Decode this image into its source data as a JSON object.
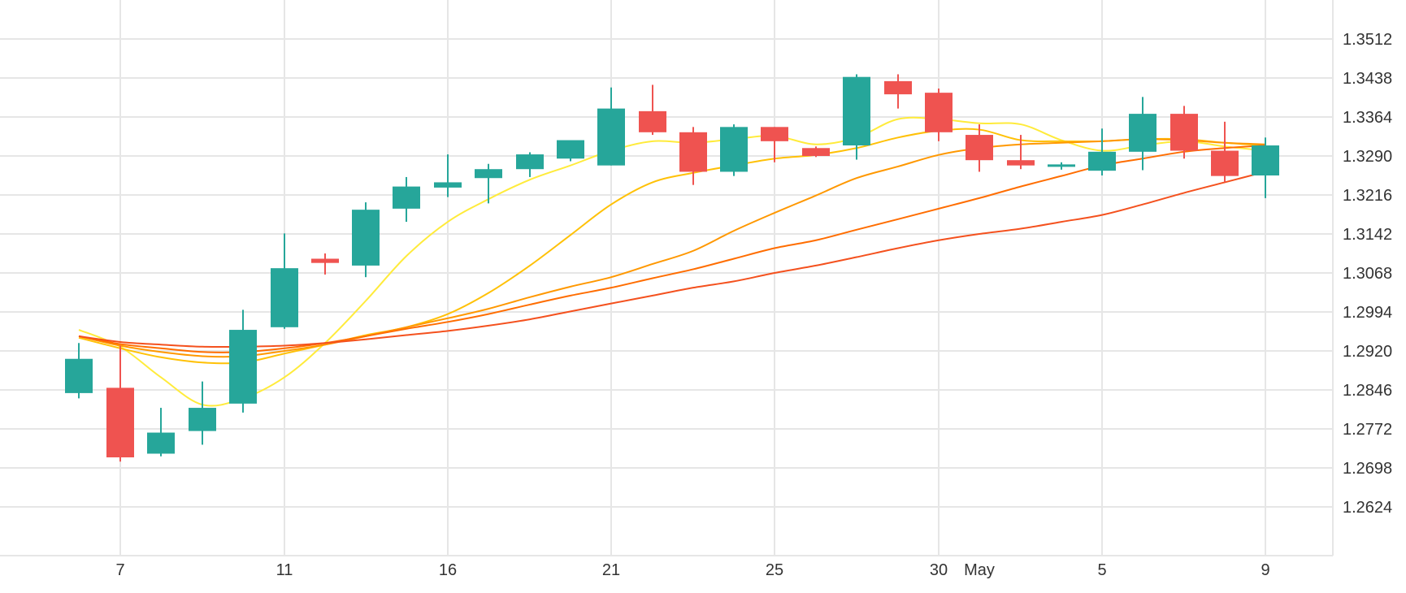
{
  "chart_data": {
    "type": "candlestick",
    "x_ticks": [
      "7",
      "11",
      "16",
      "21",
      "25",
      "30",
      "May",
      "5",
      "9"
    ],
    "y_ticks": [
      "1.3512",
      "1.3438",
      "1.3364",
      "1.3290",
      "1.3216",
      "1.3142",
      "1.3068",
      "1.2994",
      "1.2920",
      "1.2846",
      "1.2772",
      "1.2698",
      "1.2624"
    ],
    "ylim": [
      1.255,
      1.358
    ],
    "grid": true,
    "colors": {
      "up": "#26a69a",
      "down": "#ef5350",
      "grid": "#e6e6e6",
      "text": "#333333"
    },
    "candles": [
      {
        "x": 6,
        "open": 1.284,
        "high": 1.2935,
        "low": 1.283,
        "close": 1.2905
      },
      {
        "x": 7,
        "open": 1.285,
        "high": 1.293,
        "low": 1.271,
        "close": 1.2718
      },
      {
        "x": 8,
        "open": 1.2725,
        "high": 1.2812,
        "low": 1.272,
        "close": 1.2765
      },
      {
        "x": 9,
        "open": 1.2768,
        "high": 1.2862,
        "low": 1.2742,
        "close": 1.2812
      },
      {
        "x": 10,
        "open": 1.282,
        "high": 1.2998,
        "low": 1.2803,
        "close": 1.296
      },
      {
        "x": 11,
        "open": 1.2965,
        "high": 1.3143,
        "low": 1.2962,
        "close": 1.3077
      },
      {
        "x": 12,
        "open": 1.3095,
        "high": 1.3105,
        "low": 1.3065,
        "close": 1.3087
      },
      {
        "x": 13,
        "open": 1.3082,
        "high": 1.3202,
        "low": 1.306,
        "close": 1.3188
      },
      {
        "x": 14,
        "open": 1.319,
        "high": 1.325,
        "low": 1.3165,
        "close": 1.3232
      },
      {
        "x": 15,
        "open": 1.323,
        "high": 1.3293,
        "low": 1.3212,
        "close": 1.324
      },
      {
        "x": 16,
        "open": 1.3248,
        "high": 1.3275,
        "low": 1.32,
        "close": 1.3265
      },
      {
        "x": 17,
        "open": 1.3265,
        "high": 1.3297,
        "low": 1.325,
        "close": 1.3293
      },
      {
        "x": 18,
        "open": 1.3285,
        "high": 1.3315,
        "low": 1.328,
        "close": 1.332
      },
      {
        "x": 19,
        "open": 1.3272,
        "high": 1.342,
        "low": 1.3272,
        "close": 1.338
      },
      {
        "x": 20,
        "open": 1.3375,
        "high": 1.3425,
        "low": 1.333,
        "close": 1.3335
      },
      {
        "x": 21,
        "open": 1.3335,
        "high": 1.3345,
        "low": 1.3235,
        "close": 1.326
      },
      {
        "x": 22,
        "open": 1.326,
        "high": 1.335,
        "low": 1.3252,
        "close": 1.3345
      },
      {
        "x": 23,
        "open": 1.3345,
        "high": 1.3345,
        "low": 1.3278,
        "close": 1.3318
      },
      {
        "x": 24,
        "open": 1.3305,
        "high": 1.3308,
        "low": 1.3288,
        "close": 1.329
      },
      {
        "x": 25,
        "open": 1.331,
        "high": 1.3445,
        "low": 1.3283,
        "close": 1.344
      },
      {
        "x": 26,
        "open": 1.3432,
        "high": 1.3445,
        "low": 1.338,
        "close": 1.3407
      },
      {
        "x": 27,
        "open": 1.341,
        "high": 1.3418,
        "low": 1.3318,
        "close": 1.3335
      },
      {
        "x": 28,
        "open": 1.333,
        "high": 1.335,
        "low": 1.326,
        "close": 1.3282
      },
      {
        "x": 29,
        "open": 1.3282,
        "high": 1.333,
        "low": 1.3265,
        "close": 1.3272
      },
      {
        "x": 30,
        "open": 1.327,
        "high": 1.3278,
        "low": 1.3264,
        "close": 1.3274
      },
      {
        "x": 31,
        "open": 1.3262,
        "high": 1.3342,
        "low": 1.3253,
        "close": 1.3298
      },
      {
        "x": 32,
        "open": 1.3298,
        "high": 1.3402,
        "low": 1.3263,
        "close": 1.337
      },
      {
        "x": 33,
        "open": 1.337,
        "high": 1.3385,
        "low": 1.3285,
        "close": 1.33
      },
      {
        "x": 34,
        "open": 1.33,
        "high": 1.3355,
        "low": 1.324,
        "close": 1.3252
      },
      {
        "x": 35,
        "open": 1.3253,
        "high": 1.3325,
        "low": 1.321,
        "close": 1.331
      }
    ],
    "moving_averages": [
      {
        "color": "#ffeb3b",
        "points": [
          [
            6,
            1.296
          ],
          [
            7,
            1.2928
          ],
          [
            8,
            1.287
          ],
          [
            9,
            1.2818
          ],
          [
            10,
            1.283
          ],
          [
            11,
            1.287
          ],
          [
            12,
            1.2935
          ],
          [
            13,
            1.3015
          ],
          [
            14,
            1.31
          ],
          [
            15,
            1.3165
          ],
          [
            16,
            1.3208
          ],
          [
            17,
            1.3245
          ],
          [
            18,
            1.3272
          ],
          [
            19,
            1.33
          ],
          [
            20,
            1.3318
          ],
          [
            21,
            1.3315
          ],
          [
            22,
            1.3322
          ],
          [
            23,
            1.3328
          ],
          [
            24,
            1.3312
          ],
          [
            25,
            1.3325
          ],
          [
            26,
            1.336
          ],
          [
            27,
            1.336
          ],
          [
            28,
            1.3352
          ],
          [
            29,
            1.335
          ],
          [
            30,
            1.332
          ],
          [
            31,
            1.33
          ],
          [
            32,
            1.331
          ],
          [
            33,
            1.3318
          ],
          [
            34,
            1.3308
          ],
          [
            35,
            1.33
          ]
        ]
      },
      {
        "color": "#ffc107",
        "points": [
          [
            6,
            1.2945
          ],
          [
            7,
            1.2925
          ],
          [
            8,
            1.2908
          ],
          [
            9,
            1.2898
          ],
          [
            10,
            1.2898
          ],
          [
            11,
            1.2915
          ],
          [
            12,
            1.2932
          ],
          [
            13,
            1.295
          ],
          [
            14,
            1.2965
          ],
          [
            15,
            1.299
          ],
          [
            16,
            1.303
          ],
          [
            17,
            1.3082
          ],
          [
            18,
            1.314
          ],
          [
            19,
            1.3198
          ],
          [
            20,
            1.324
          ],
          [
            21,
            1.3258
          ],
          [
            22,
            1.3272
          ],
          [
            23,
            1.3285
          ],
          [
            24,
            1.3292
          ],
          [
            25,
            1.3305
          ],
          [
            26,
            1.3325
          ],
          [
            27,
            1.3338
          ],
          [
            28,
            1.334
          ],
          [
            29,
            1.332
          ],
          [
            30,
            1.3318
          ],
          [
            31,
            1.3318
          ],
          [
            32,
            1.3322
          ],
          [
            33,
            1.3322
          ],
          [
            34,
            1.3315
          ],
          [
            35,
            1.331
          ]
        ]
      },
      {
        "color": "#ff9800",
        "points": [
          [
            6,
            1.2948
          ],
          [
            7,
            1.293
          ],
          [
            8,
            1.2918
          ],
          [
            9,
            1.291
          ],
          [
            10,
            1.291
          ],
          [
            11,
            1.292
          ],
          [
            12,
            1.2932
          ],
          [
            13,
            1.2948
          ],
          [
            14,
            1.2965
          ],
          [
            15,
            1.2982
          ],
          [
            16,
            1.3
          ],
          [
            17,
            1.3022
          ],
          [
            18,
            1.3042
          ],
          [
            19,
            1.306
          ],
          [
            20,
            1.3085
          ],
          [
            21,
            1.311
          ],
          [
            22,
            1.3148
          ],
          [
            23,
            1.3182
          ],
          [
            24,
            1.3215
          ],
          [
            25,
            1.3248
          ],
          [
            26,
            1.327
          ],
          [
            27,
            1.3292
          ],
          [
            28,
            1.3305
          ],
          [
            29,
            1.3312
          ],
          [
            30,
            1.3315
          ],
          [
            31,
            1.3318
          ],
          [
            32,
            1.3322
          ],
          [
            33,
            1.332
          ],
          [
            34,
            1.3315
          ],
          [
            35,
            1.3312
          ]
        ]
      },
      {
        "color": "#ff6d00",
        "points": [
          [
            6,
            1.2948
          ],
          [
            7,
            1.2933
          ],
          [
            8,
            1.2925
          ],
          [
            9,
            1.2918
          ],
          [
            10,
            1.2918
          ],
          [
            11,
            1.2925
          ],
          [
            12,
            1.2935
          ],
          [
            13,
            1.2948
          ],
          [
            14,
            1.2962
          ],
          [
            15,
            1.2975
          ],
          [
            16,
            1.299
          ],
          [
            17,
            1.3008
          ],
          [
            18,
            1.3025
          ],
          [
            19,
            1.304
          ],
          [
            20,
            1.3058
          ],
          [
            21,
            1.3075
          ],
          [
            22,
            1.3095
          ],
          [
            23,
            1.3115
          ],
          [
            24,
            1.313
          ],
          [
            25,
            1.315
          ],
          [
            26,
            1.317
          ],
          [
            27,
            1.319
          ],
          [
            28,
            1.321
          ],
          [
            29,
            1.3232
          ],
          [
            30,
            1.3252
          ],
          [
            31,
            1.3272
          ],
          [
            32,
            1.3285
          ],
          [
            33,
            1.3298
          ],
          [
            34,
            1.3305
          ],
          [
            35,
            1.331
          ]
        ]
      },
      {
        "color": "#f4511e",
        "points": [
          [
            6,
            1.2948
          ],
          [
            7,
            1.2937
          ],
          [
            8,
            1.2932
          ],
          [
            9,
            1.2928
          ],
          [
            10,
            1.2928
          ],
          [
            11,
            1.293
          ],
          [
            12,
            1.2935
          ],
          [
            13,
            1.2942
          ],
          [
            14,
            1.295
          ],
          [
            15,
            1.2958
          ],
          [
            16,
            1.2968
          ],
          [
            17,
            1.298
          ],
          [
            18,
            1.2995
          ],
          [
            19,
            1.301
          ],
          [
            20,
            1.3025
          ],
          [
            21,
            1.304
          ],
          [
            22,
            1.3052
          ],
          [
            23,
            1.3068
          ],
          [
            24,
            1.3082
          ],
          [
            25,
            1.3098
          ],
          [
            26,
            1.3115
          ],
          [
            27,
            1.313
          ],
          [
            28,
            1.3142
          ],
          [
            29,
            1.3152
          ],
          [
            30,
            1.3165
          ],
          [
            31,
            1.3178
          ],
          [
            32,
            1.3198
          ],
          [
            33,
            1.322
          ],
          [
            34,
            1.324
          ],
          [
            35,
            1.326
          ]
        ]
      }
    ]
  }
}
